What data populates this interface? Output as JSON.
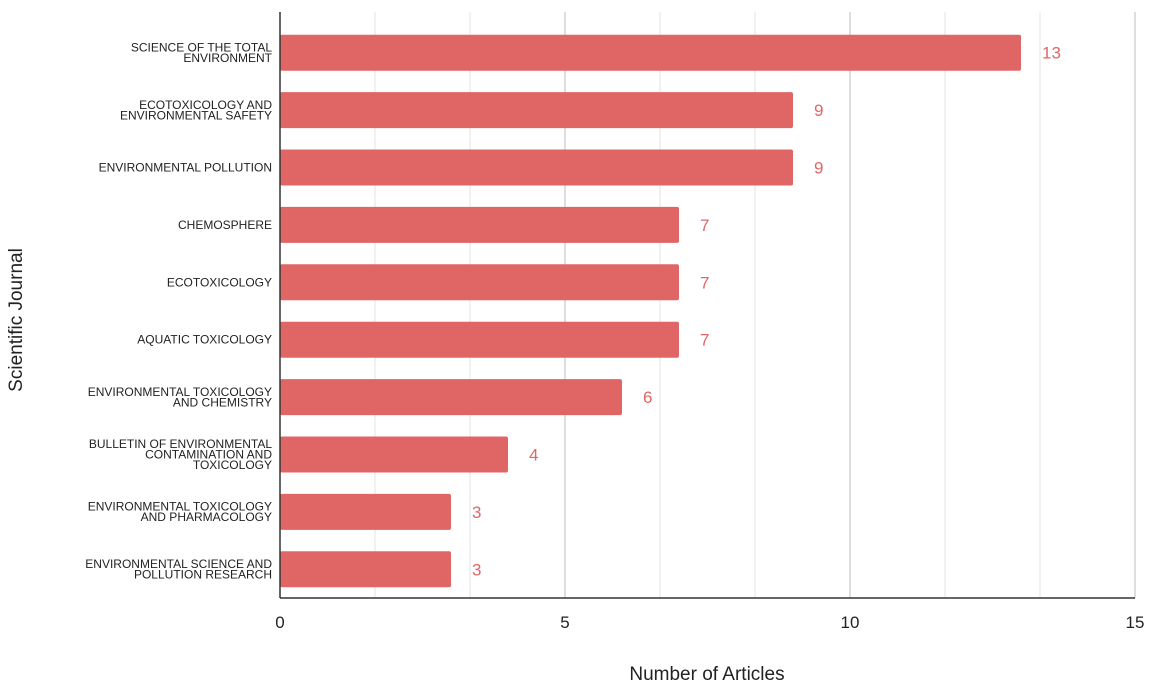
{
  "chart_data": {
    "type": "bar",
    "orientation": "horizontal",
    "title": "",
    "xlabel": "Number of Articles",
    "ylabel": "Scientific Journal",
    "xlim": [
      0,
      15
    ],
    "x_ticks": [
      "0",
      "5",
      "10",
      "15"
    ],
    "minor_gridlines_per_major": 2,
    "grid": true,
    "legend": "none",
    "bar_color": "#e06666",
    "label_color": "#e06666",
    "categories": [
      [
        "SCIENCE OF THE TOTAL",
        "ENVIRONMENT"
      ],
      [
        "ECOTOXICOLOGY AND",
        "ENVIRONMENTAL SAFETY"
      ],
      [
        "ENVIRONMENTAL POLLUTION"
      ],
      [
        "CHEMOSPHERE"
      ],
      [
        "ECOTOXICOLOGY"
      ],
      [
        "AQUATIC TOXICOLOGY"
      ],
      [
        "ENVIRONMENTAL TOXICOLOGY",
        "AND CHEMISTRY"
      ],
      [
        "BULLETIN OF ENVIRONMENTAL",
        "CONTAMINATION AND",
        "TOXICOLOGY"
      ],
      [
        "ENVIRONMENTAL TOXICOLOGY",
        "AND PHARMACOLOGY"
      ],
      [
        "ENVIRONMENTAL SCIENCE AND",
        "POLLUTION RESEARCH"
      ]
    ],
    "values": [
      13,
      9,
      9,
      7,
      7,
      7,
      6,
      4,
      3,
      3
    ],
    "data_labels": [
      "13",
      "9",
      "9",
      "7",
      "7",
      "7",
      "6",
      "4",
      "3",
      "3"
    ]
  }
}
